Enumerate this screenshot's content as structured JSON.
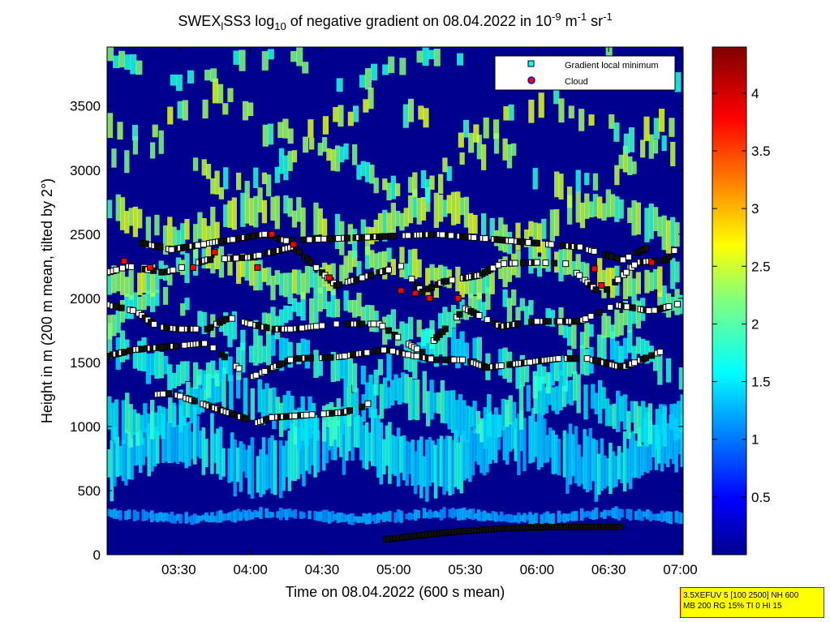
{
  "chart_data": {
    "type": "heatmap",
    "title_parts": {
      "pre": "SWEX",
      "sub1": "l",
      "mid": "SS3 log",
      "sub2": "10",
      "post": " of negative gradient on 08.04.2022 in 10",
      "sup1": "-9",
      "unit1": " m",
      "sup2": "-1",
      "unit2": " sr",
      "sup3": "-1"
    },
    "xlabel": "Time on 08.04.2022 (600 s mean)",
    "ylabel": "Height in m (200 m mean, tilted by 2°)",
    "x_ticks": [
      "03:30",
      "04:00",
      "04:30",
      "05:00",
      "05:30",
      "06:00",
      "06:30",
      "07:00"
    ],
    "x_tick_hours": [
      3.5,
      4.0,
      4.5,
      5.0,
      5.5,
      6.0,
      6.5,
      7.0
    ],
    "xlim_hours": [
      3.0,
      7.02
    ],
    "y_ticks": [
      "0",
      "500",
      "1000",
      "1500",
      "2000",
      "2500",
      "3000",
      "3500"
    ],
    "y_tick_values": [
      0,
      500,
      1000,
      1500,
      2000,
      2500,
      3000,
      3500
    ],
    "ylim": [
      0,
      3960
    ],
    "colorbar": {
      "ticks": [
        "0.5",
        "1",
        "1.5",
        "2",
        "2.5",
        "3",
        "3.5",
        "4"
      ],
      "tick_values": [
        0.5,
        1.0,
        1.5,
        2.0,
        2.5,
        3.0,
        3.5,
        4.0
      ],
      "range": [
        0.0,
        4.4
      ],
      "colormap": "jet"
    },
    "legend": {
      "placement": "top-right",
      "entries": [
        {
          "label": "Gradient local minimum",
          "marker": "square",
          "color": "#00ffff"
        },
        {
          "label": "Cloud",
          "marker": "circle",
          "color": "#ff0000",
          "edge": "#0000ff"
        }
      ]
    },
    "minima_layers": [
      {
        "name": "surface",
        "points": [
          [
            4.95,
            120
          ],
          [
            5.1,
            140
          ],
          [
            5.3,
            165
          ],
          [
            5.5,
            185
          ],
          [
            5.7,
            200
          ],
          [
            5.9,
            210
          ],
          [
            6.1,
            215
          ],
          [
            6.3,
            215
          ],
          [
            6.5,
            215
          ],
          [
            6.6,
            215
          ]
        ]
      },
      {
        "name": "layer-1100",
        "points": [
          [
            3.35,
            1250
          ],
          [
            3.45,
            1260
          ],
          [
            4.05,
            1030
          ],
          [
            4.15,
            1070
          ],
          [
            4.65,
            1110
          ],
          [
            4.8,
            1160
          ],
          [
            4.9,
            1250
          ]
        ]
      },
      {
        "name": "layer-1500",
        "points": [
          [
            3.0,
            1550
          ],
          [
            3.2,
            1600
          ],
          [
            3.7,
            1650
          ],
          [
            4.0,
            1380
          ],
          [
            4.3,
            1530
          ],
          [
            4.6,
            1540
          ],
          [
            4.95,
            1600
          ],
          [
            5.1,
            1560
          ],
          [
            5.3,
            1520
          ],
          [
            5.5,
            1520
          ],
          [
            5.65,
            1460
          ],
          [
            6.15,
            1530
          ],
          [
            6.35,
            1530
          ],
          [
            6.6,
            1460
          ],
          [
            6.9,
            1600
          ]
        ]
      },
      {
        "name": "layer-1800",
        "points": [
          [
            3.0,
            1950
          ],
          [
            3.2,
            1900
          ],
          [
            3.35,
            1780
          ],
          [
            3.5,
            1760
          ],
          [
            3.7,
            1760
          ],
          [
            3.85,
            1850
          ],
          [
            4.0,
            1800
          ],
          [
            4.15,
            1760
          ],
          [
            4.3,
            1760
          ],
          [
            4.6,
            1800
          ],
          [
            4.9,
            1800
          ],
          [
            5.05,
            1680
          ],
          [
            5.2,
            1580
          ],
          [
            5.5,
            1920
          ],
          [
            5.75,
            1780
          ],
          [
            6.0,
            1820
          ],
          [
            6.3,
            1820
          ],
          [
            6.55,
            1950
          ],
          [
            6.8,
            1900
          ],
          [
            7.0,
            1960
          ]
        ]
      },
      {
        "name": "layer-2100",
        "points": [
          [
            3.0,
            2200
          ],
          [
            3.15,
            2250
          ],
          [
            3.4,
            2200
          ],
          [
            3.7,
            2300
          ],
          [
            4.0,
            2320
          ],
          [
            4.3,
            2400
          ],
          [
            4.6,
            2100
          ],
          [
            4.9,
            2200
          ],
          [
            5.05,
            2250
          ],
          [
            5.2,
            2050
          ],
          [
            5.35,
            2130
          ],
          [
            5.6,
            2180
          ],
          [
            5.75,
            2270
          ],
          [
            6.0,
            2280
          ],
          [
            6.2,
            2270
          ],
          [
            6.45,
            2030
          ],
          [
            6.7,
            2280
          ],
          [
            6.9,
            2300
          ],
          [
            7.0,
            2420
          ]
        ]
      },
      {
        "name": "layer-2450",
        "points": [
          [
            3.25,
            2430
          ],
          [
            3.45,
            2380
          ],
          [
            4.1,
            2500
          ],
          [
            4.25,
            2450
          ],
          [
            5.1,
            2490
          ],
          [
            5.3,
            2500
          ],
          [
            6.3,
            2400
          ],
          [
            6.6,
            2300
          ],
          [
            6.8,
            2410
          ]
        ]
      }
    ],
    "clouds": [
      [
        3.12,
        2290
      ],
      [
        3.3,
        2240
      ],
      [
        3.6,
        2240
      ],
      [
        3.75,
        2360
      ],
      [
        4.05,
        2240
      ],
      [
        4.15,
        2500
      ],
      [
        4.3,
        2420
      ],
      [
        4.55,
        2160
      ],
      [
        5.05,
        2060
      ],
      [
        5.15,
        2040
      ],
      [
        5.25,
        2000
      ],
      [
        5.45,
        2000
      ],
      [
        6.4,
        2230
      ],
      [
        6.45,
        2100
      ],
      [
        6.8,
        2280
      ]
    ]
  },
  "info_box": {
    "line1": "3.5XEFUV 5 [100 2500] NH 600",
    "line2": "MB 200 RG 15% TI 0 HI 15"
  }
}
